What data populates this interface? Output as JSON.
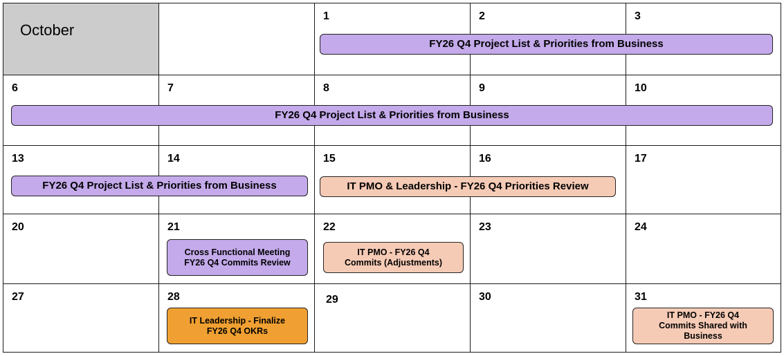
{
  "month": "October",
  "days": {
    "d1": "1",
    "d2": "2",
    "d3": "3",
    "d6": "6",
    "d7": "7",
    "d8": "8",
    "d9": "9",
    "d10": "10",
    "d13": "13",
    "d14": "14",
    "d15": "15",
    "d16": "16",
    "d17": "17",
    "d20": "20",
    "d21": "21",
    "d22": "22",
    "d23": "23",
    "d24": "24",
    "d27": "27",
    "d28": "28",
    "d29": "29",
    "d30": "30",
    "d31": "31"
  },
  "events": {
    "project_list_w1": "FY26 Q4 Project List & Priorities from Business",
    "project_list_w2": "FY26 Q4 Project List & Priorities from Business",
    "project_list_w3": "FY26 Q4 Project List & Priorities from Business",
    "priorities_review": "IT PMO & Leadership - FY26 Q4 Priorities Review",
    "cross_functional_l1": "Cross Functional Meeting",
    "cross_functional_l2": "FY26 Q4 Commits Review",
    "commits_adj_l1": "IT PMO - FY26 Q4",
    "commits_adj_l2": "Commits (Adjustments)",
    "finalize_okrs_l1": "IT Leadership - Finalize",
    "finalize_okrs_l2": "FY26 Q4 OKRs",
    "commits_shared_l1": "IT PMO - FY26 Q4",
    "commits_shared_l2": "Commits Shared with",
    "commits_shared_l3": "Business"
  },
  "colors": {
    "purple": "#c4aaea",
    "peach": "#f6cbb6",
    "orange": "#f0a032",
    "month_header_bg": "#cccccc"
  }
}
